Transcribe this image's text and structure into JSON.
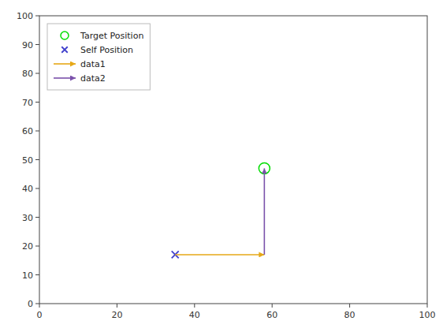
{
  "chart_data": {
    "type": "scatter",
    "xlim": [
      0,
      100
    ],
    "ylim": [
      0,
      100
    ],
    "xticks": [
      0,
      20,
      40,
      60,
      80,
      100
    ],
    "yticks": [
      0,
      10,
      20,
      30,
      40,
      50,
      60,
      70,
      80,
      90,
      100
    ],
    "grid": false,
    "legend": "upper-left",
    "series": [
      {
        "name": "Target Position",
        "type": "scatter",
        "marker": "circle",
        "color": "#00dd00",
        "x": [
          58
        ],
        "values": [
          47
        ]
      },
      {
        "name": "Self Position",
        "type": "scatter",
        "marker": "x",
        "color": "#4040cc",
        "x": [
          35
        ],
        "values": [
          17
        ]
      },
      {
        "name": "data1",
        "type": "line",
        "marker": "arrow",
        "color": "#e6a817",
        "x": [
          35,
          58
        ],
        "values": [
          17,
          17
        ]
      },
      {
        "name": "data2",
        "type": "line",
        "marker": "arrow",
        "color": "#7b52ab",
        "x": [
          58,
          58
        ],
        "values": [
          17,
          47
        ]
      }
    ]
  }
}
